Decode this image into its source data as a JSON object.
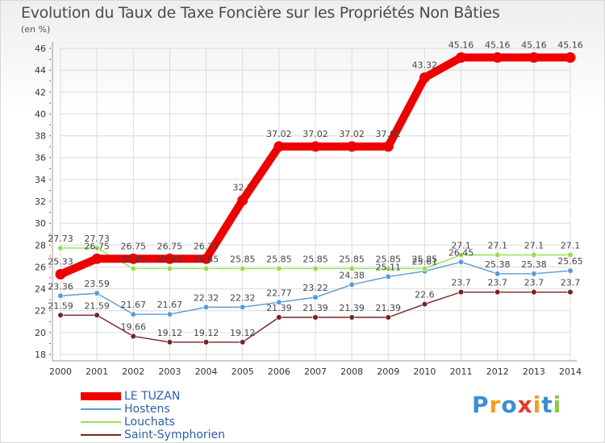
{
  "title": "Evolution du Taux de Taxe Foncière sur les Propriétés Non Bâties",
  "subtitle": "(en %)",
  "logo": {
    "text": "Proxiti",
    "letters": [
      "P",
      "r",
      "o",
      "x",
      "i",
      "t",
      "i"
    ],
    "colors": [
      "#3a8ed0",
      "#f0a020",
      "#3a8ed0",
      "#e83a2a",
      "#f0a020",
      "#3a8ed0",
      "#8cc63f"
    ]
  },
  "chart_data": {
    "type": "line",
    "title": "Evolution du Taux de Taxe Foncière sur les Propriétés Non Bâties",
    "ylabel": "(en %)",
    "xlabel": "",
    "x": [
      "2000",
      "2001",
      "2002",
      "2003",
      "2004",
      "2005",
      "2006",
      "2007",
      "2008",
      "2009",
      "2010",
      "2011",
      "2012",
      "2013",
      "2014"
    ],
    "ylim": [
      18,
      46
    ],
    "yticks": [
      18,
      20,
      22,
      24,
      26,
      28,
      30,
      32,
      34,
      36,
      38,
      40,
      42,
      44,
      46
    ],
    "grid": true,
    "legend_position": "bottom-left",
    "series": [
      {
        "name": "LE TUZAN",
        "color": "#ee0000",
        "values": [
          25.33,
          26.75,
          26.75,
          26.75,
          26.75,
          32.1,
          37.02,
          37.02,
          37.02,
          37.02,
          43.32,
          45.16,
          45.16,
          45.16,
          45.16
        ],
        "labels": [
          "25.33",
          "26.75",
          "26.75",
          "26.75",
          "26.75",
          "32.1",
          "37.02",
          "37.02",
          "37.02",
          "37.02",
          "43.32",
          "45.16",
          "45.16",
          "45.16",
          "45.16"
        ]
      },
      {
        "name": "Hostens",
        "color": "#5b9bd5",
        "values": [
          23.36,
          23.59,
          21.67,
          21.67,
          22.32,
          22.32,
          22.77,
          23.22,
          24.38,
          25.11,
          25.61,
          26.45,
          25.38,
          25.38,
          25.65
        ],
        "labels": [
          "23.36",
          "23.59",
          "21.67",
          "21.67",
          "22.32",
          "22.32",
          "22.77",
          "23.22",
          "24.38",
          "25.11",
          "25.61",
          "26.45",
          "25.38",
          "25.38",
          "25.65"
        ]
      },
      {
        "name": "Louchats",
        "color": "#99dd55",
        "values": [
          27.73,
          27.73,
          25.85,
          25.85,
          25.85,
          25.85,
          25.85,
          25.85,
          25.85,
          25.85,
          25.85,
          27.1,
          27.1,
          27.1,
          27.1
        ],
        "labels": [
          "27.73",
          "27.73",
          "25.85",
          "25.85",
          "25.85",
          "25.85",
          "25.85",
          "25.85",
          "25.85",
          "25.85",
          "25.85",
          "27.1",
          "27.1",
          "27.1",
          "27.1"
        ]
      },
      {
        "name": "Saint-Symphorien",
        "color": "#772222",
        "values": [
          21.59,
          21.59,
          19.66,
          19.12,
          19.12,
          19.12,
          21.39,
          21.39,
          21.39,
          21.39,
          22.6,
          23.7,
          23.7,
          23.7,
          23.7
        ],
        "labels": [
          "21.59",
          "21.59",
          "19.66",
          "19.12",
          "19.12",
          "19.12",
          "21.39",
          "21.39",
          "21.39",
          "21.39",
          "22.6",
          "23.7",
          "23.7",
          "23.7",
          "23.7"
        ]
      }
    ]
  }
}
